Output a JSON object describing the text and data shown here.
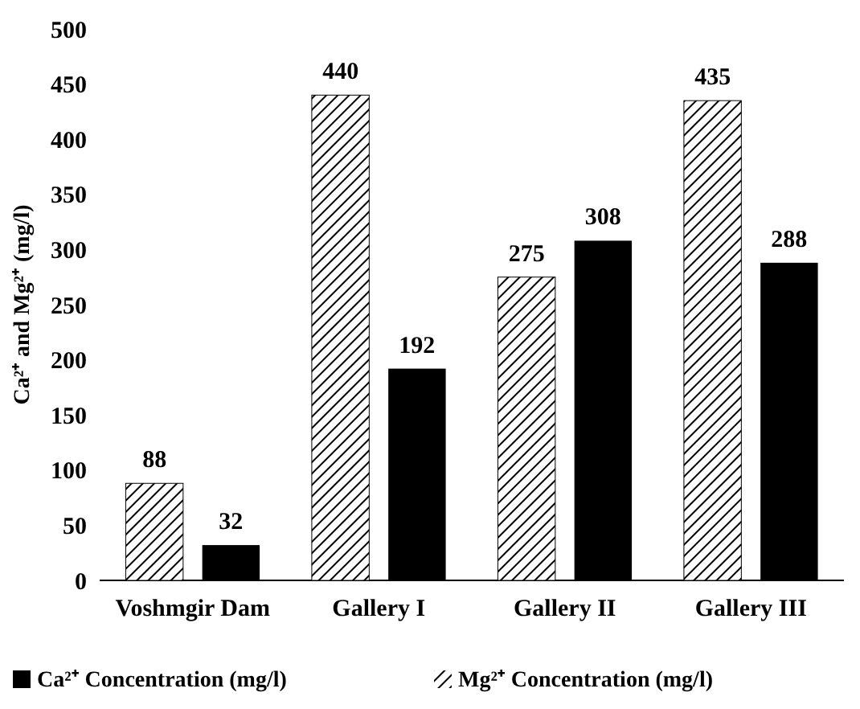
{
  "chart_data": {
    "type": "bar",
    "ylabel": "Ca²⁺ and Mg²⁺ (mg/l)",
    "categories": [
      "Voshmgir Dam",
      "Gallery I",
      "Gallery II",
      "Gallery III"
    ],
    "series": [
      {
        "name": "Mg²⁺ Concentration (mg/l)",
        "color": "#000000",
        "values": [
          88,
          440,
          275,
          435
        ]
      },
      {
        "name": "Ca²⁺ Concentration (mg/l)",
        "color": "#000000",
        "values": [
          32,
          192,
          308,
          288
        ]
      }
    ],
    "ylim": [
      0,
      500
    ],
    "yticks": [
      0,
      50,
      100,
      150,
      200,
      250,
      300,
      350,
      400,
      450,
      500
    ],
    "grid": false,
    "data_labels": true,
    "legend": "bottom"
  }
}
